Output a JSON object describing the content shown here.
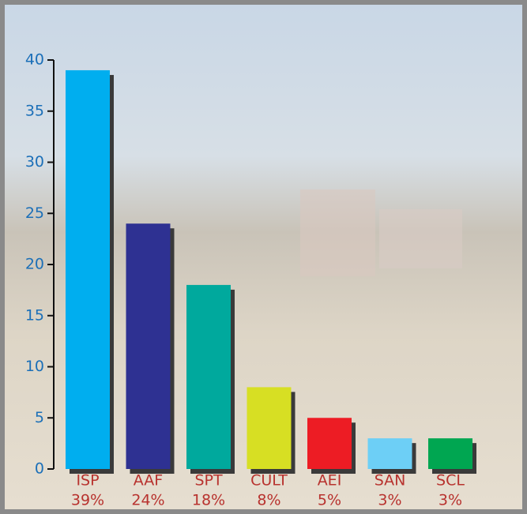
{
  "chart_data": {
    "type": "bar",
    "categories": [
      "ISP",
      "AAF",
      "SPT",
      "CULT",
      "AEI",
      "SAN",
      "SCL"
    ],
    "values": [
      39,
      24,
      18,
      8,
      5,
      3,
      3
    ],
    "value_labels": [
      "39%",
      "24%",
      "18%",
      "8%",
      "5%",
      "3%",
      "3%"
    ],
    "colors": [
      "#00aeef",
      "#2e3192",
      "#00a99d",
      "#d7df23",
      "#ed1c24",
      "#6dcff6",
      "#00a651"
    ],
    "ylim": [
      0,
      40
    ],
    "yticks": [
      0,
      5,
      10,
      15,
      20,
      25,
      30,
      35,
      40
    ]
  }
}
